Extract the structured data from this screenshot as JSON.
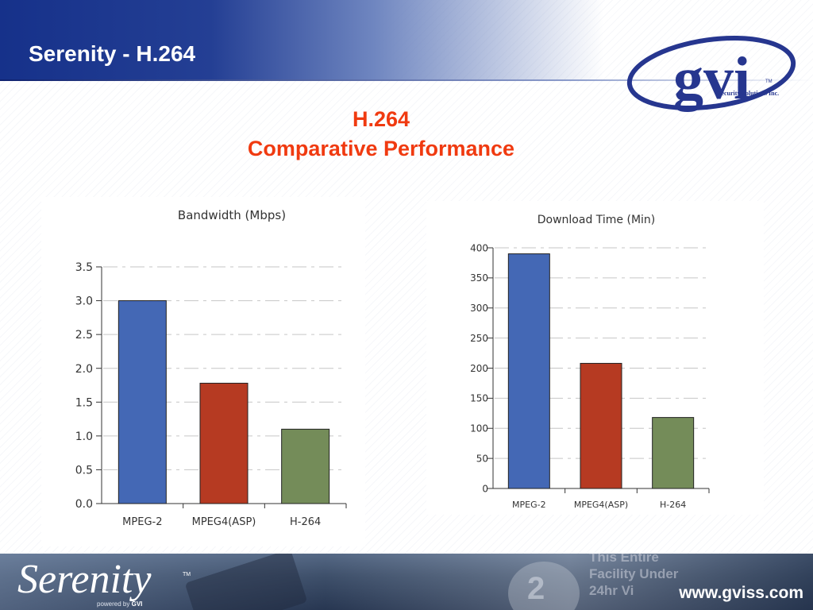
{
  "slide": {
    "title": "Serenity - H.264",
    "heading_line1": "H.264",
    "heading_line2": "Comparative Performance"
  },
  "logo": {
    "name": "gvi",
    "subtitle": "Security Solutions Inc.",
    "tm": "TM"
  },
  "footer": {
    "brand": "Serenity",
    "tm": "TM",
    "powered_by_prefix": "powered by",
    "powered_by_brand": "GVI",
    "url": "www.gviss.com",
    "background_text": [
      "This Entire",
      "Facility Under",
      "24hr Vi"
    ],
    "background_number": "2"
  },
  "colors": {
    "title_bar": "#16318a",
    "heading": "#f03a10",
    "mpeg2": "#4468b5",
    "mpeg4asp": "#b63a22",
    "h264": "#748c59"
  },
  "chart_data": [
    {
      "type": "bar",
      "title": "Bandwidth (Mbps)",
      "xlabel": "",
      "ylabel": "",
      "categories": [
        "MPEG-2",
        "MPEG4(ASP)",
        "H-264"
      ],
      "values": [
        3.0,
        1.78,
        1.1
      ],
      "ylim": [
        0,
        3.5
      ],
      "yticks": [
        "0.0",
        "0.5",
        "1.0",
        "1.5",
        "2.0",
        "2.5",
        "3.0",
        "3.5"
      ],
      "grid": true,
      "colors": [
        "#4468b5",
        "#b63a22",
        "#748c59"
      ]
    },
    {
      "type": "bar",
      "title": "Download Time (Min)",
      "xlabel": "",
      "ylabel": "",
      "categories": [
        "MPEG-2",
        "MPEG4(ASP)",
        "H-264"
      ],
      "values": [
        390,
        208,
        118
      ],
      "ylim": [
        0,
        400
      ],
      "yticks": [
        "0",
        "50",
        "100",
        "150",
        "200",
        "250",
        "300",
        "350",
        "400"
      ],
      "grid": true,
      "colors": [
        "#4468b5",
        "#b63a22",
        "#748c59"
      ]
    }
  ]
}
